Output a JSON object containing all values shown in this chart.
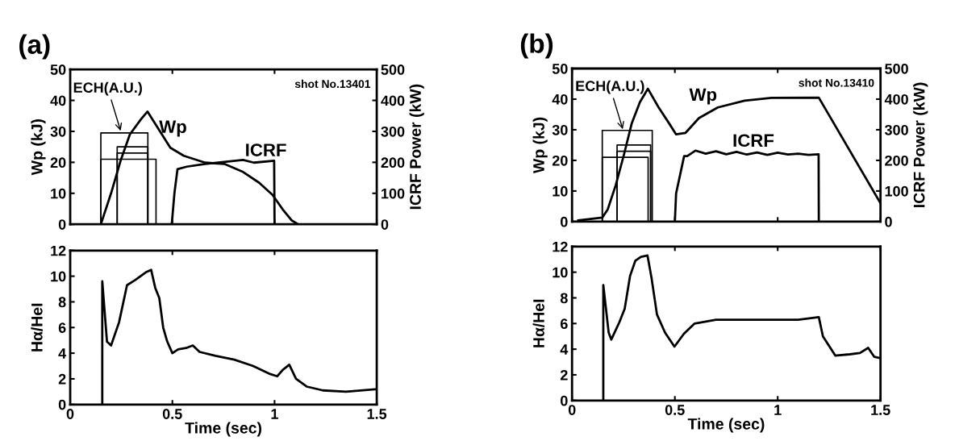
{
  "chart_data": [
    {
      "type": "line",
      "title": "(a)",
      "ylabel": "Wp (kJ)",
      "y2label": "ICRF Power (kW)",
      "xlim": [
        0,
        1.5
      ],
      "xticks": [
        0,
        0.5,
        1,
        1.5
      ],
      "ylim": [
        0,
        50
      ],
      "yticks": [
        0,
        10,
        20,
        30,
        40,
        50
      ],
      "y2lim": [
        0,
        500
      ],
      "y2ticks": [
        0,
        100,
        200,
        300,
        400,
        500
      ],
      "tick_labels": "y",
      "line_style": "solid",
      "annotations": [
        {
          "text": "ECH(A.U.)",
          "x": 0.25,
          "y": 29.5
        },
        "Wp",
        "ICRF",
        "shot No.13401"
      ],
      "series": [
        {
          "color": "#000000",
          "x": [
            0.15,
            0.2,
            0.246,
            0.292,
            0.345,
            0.378,
            0.424,
            0.49,
            0.556,
            0.66,
            0.754,
            0.846,
            0.925,
            0.99,
            1.04,
            1.083,
            1.115
          ],
          "values": [
            0,
            10,
            20.4,
            29,
            33.8,
            36.4,
            31.6,
            24.7,
            22.1,
            19.9,
            19.5,
            16.9,
            13.4,
            9.5,
            4.8,
            1.3,
            0
          ]
        },
        {
          "color": "#000000",
          "axis": "y2",
          "x": [
            0.497,
            0.51,
            0.525,
            0.57,
            0.66,
            0.79,
            0.846,
            0.899,
            0.998,
            1.0
          ],
          "values": [
            0,
            100,
            178,
            186,
            195,
            204,
            208,
            199,
            205,
            0
          ]
        },
        {
          "color": "#000000",
          "x": [
            0.15,
            0.15,
            0.38,
            0.38
          ],
          "values": [
            0,
            29.5,
            29.5,
            0
          ]
        },
        {
          "color": "#000000",
          "x": [
            0.23,
            0.23,
            0.38,
            0.38
          ],
          "values": [
            0,
            25,
            25,
            0
          ]
        },
        {
          "color": "#000000",
          "x": [
            0.23,
            0.23,
            0.38,
            0.38
          ],
          "values": [
            0,
            23,
            23,
            0
          ]
        },
        {
          "color": "#000000",
          "x": [
            0.15,
            0.15,
            0.42,
            0.42
          ],
          "values": [
            0,
            21,
            21,
            0
          ]
        }
      ]
    },
    {
      "type": "line",
      "xlabel": "Time (sec)",
      "ylabel": "Hα/HeI",
      "xlim": [
        0,
        1.5
      ],
      "xticks": [
        0,
        0.5,
        1,
        1.5
      ],
      "ylim": [
        0,
        12
      ],
      "yticks": [
        0,
        2,
        4,
        6,
        8,
        10,
        12
      ],
      "line_style": "solid",
      "series": [
        {
          "color": "#000000",
          "x": [
            0.157,
            0.157,
            0.18,
            0.2,
            0.239,
            0.278,
            0.318,
            0.37,
            0.396,
            0.416,
            0.436,
            0.455,
            0.475,
            0.5,
            0.528,
            0.567,
            0.6,
            0.633,
            0.711,
            0.803,
            0.895,
            0.974,
            1.013,
            1.04,
            1.072,
            1.105,
            1.157,
            1.236,
            1.35,
            1.5
          ],
          "values": [
            0,
            9.6,
            4.9,
            4.6,
            6.4,
            9.3,
            9.7,
            10.3,
            10.5,
            9.1,
            8.3,
            6.0,
            4.9,
            4.0,
            4.3,
            4.4,
            4.6,
            4.1,
            3.8,
            3.5,
            3.0,
            2.4,
            2.2,
            2.7,
            3.1,
            2.0,
            1.4,
            1.1,
            1.0,
            1.2
          ]
        }
      ]
    },
    {
      "type": "line",
      "title": "(b)",
      "ylabel": "Wp (kJ)",
      "y2label": "ICRF Power (kW)",
      "xlim": [
        0,
        1.5
      ],
      "xticks": [
        0,
        0.5,
        1,
        1.5
      ],
      "ylim": [
        0,
        50
      ],
      "yticks": [
        0,
        10,
        20,
        30,
        40,
        50
      ],
      "y2lim": [
        0,
        500
      ],
      "y2ticks": [
        0,
        100,
        200,
        300,
        400,
        500
      ],
      "tick_labels": "y",
      "line_style": "solid",
      "annotations": [
        {
          "text": "ECH(A.U.)",
          "x": 0.25,
          "y": 29.5
        },
        "Wp",
        "ICRF",
        "shot No.13410"
      ],
      "series": [
        {
          "color": "#000000",
          "x": [
            0.03,
            0.147,
            0.173,
            0.212,
            0.251,
            0.29,
            0.33,
            0.369,
            0.421,
            0.473,
            0.506,
            0.552,
            0.617,
            0.709,
            0.839,
            0.97,
            1.2,
            1.5
          ],
          "values": [
            0.4,
            1.3,
            3.9,
            11.8,
            21.5,
            32,
            39,
            43.4,
            37.3,
            32,
            28.5,
            29,
            33.8,
            37.3,
            39.5,
            40.4,
            40.5,
            6
          ]
        },
        {
          "color": "#000000",
          "axis": "y2",
          "x": [
            0.5,
            0.506,
            0.545,
            0.56,
            0.6,
            0.65,
            0.7,
            0.75,
            0.8,
            0.85,
            0.9,
            0.95,
            1.0,
            1.05,
            1.1,
            1.15,
            1.199,
            1.2
          ],
          "values": [
            0,
            92,
            214,
            214,
            232,
            222,
            230,
            220,
            228,
            219,
            226,
            218,
            225,
            219,
            222,
            218,
            220,
            0
          ]
        },
        {
          "color": "#000000",
          "x": [
            0.147,
            0.147,
            0.39,
            0.39
          ],
          "values": [
            0,
            29.8,
            29.8,
            0
          ]
        },
        {
          "color": "#000000",
          "x": [
            0.219,
            0.219,
            0.382,
            0.382
          ],
          "values": [
            0,
            25,
            25,
            0
          ]
        },
        {
          "color": "#000000",
          "x": [
            0.219,
            0.219,
            0.382,
            0.382
          ],
          "values": [
            0,
            23,
            23,
            0
          ]
        },
        {
          "color": "#000000",
          "x": [
            0.147,
            0.147,
            0.37,
            0.37
          ],
          "values": [
            0,
            21,
            21,
            0
          ]
        }
      ]
    },
    {
      "type": "line",
      "xlabel": "Time (sec)",
      "ylabel": "Hα/HeI",
      "xlim": [
        0,
        1.5
      ],
      "xticks": [
        0,
        0.5,
        1,
        1.5
      ],
      "ylim": [
        0,
        12
      ],
      "yticks": [
        0,
        2,
        4,
        6,
        8,
        10,
        12
      ],
      "line_style": "solid",
      "series": [
        {
          "color": "#000000",
          "x": [
            0.152,
            0.152,
            0.178,
            0.191,
            0.23,
            0.256,
            0.282,
            0.308,
            0.335,
            0.367,
            0.387,
            0.413,
            0.452,
            0.498,
            0.544,
            0.596,
            0.7,
            0.9,
            1.1,
            1.2,
            1.22,
            1.28,
            1.35,
            1.4,
            1.44,
            1.47,
            1.5
          ],
          "values": [
            0,
            9.0,
            5.3,
            4.75,
            6.1,
            7.15,
            9.7,
            10.9,
            11.2,
            11.3,
            9.5,
            6.7,
            5.3,
            4.2,
            5.2,
            6.0,
            6.3,
            6.3,
            6.3,
            6.5,
            5.0,
            3.5,
            3.6,
            3.7,
            4.1,
            3.4,
            3.3
          ]
        }
      ]
    }
  ]
}
